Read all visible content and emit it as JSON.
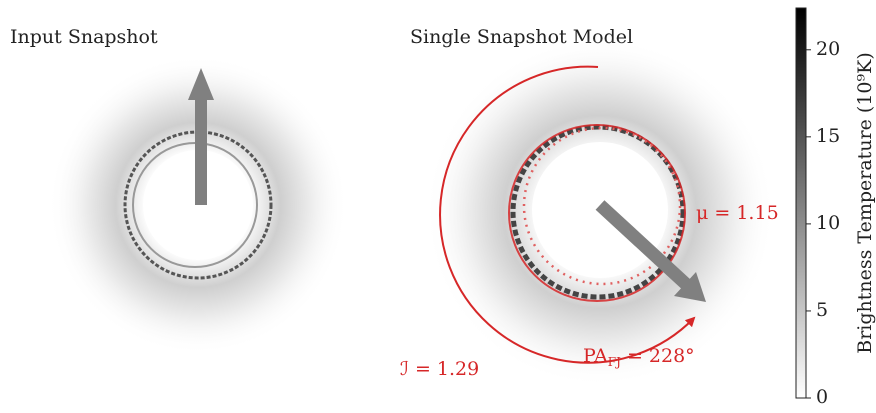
{
  "chart_data": {
    "type": "image",
    "panels": [
      {
        "title": "Input Snapshot"
      },
      {
        "title": "Single Snapshot Model",
        "annotations": {
          "mu": "μ = 1.15",
          "pa": "PA",
          "pa_sub": "FJ",
          "pa_rest": " = 228°",
          "i": "ℐ = 1.29"
        }
      }
    ],
    "colorbar": {
      "label": "Brightness Temperature (10⁹K)",
      "ylim": [
        0,
        22.4
      ],
      "yticks": [
        0,
        5,
        10,
        15,
        20
      ],
      "colormap": [
        "#ffffff",
        "#000000"
      ]
    }
  }
}
